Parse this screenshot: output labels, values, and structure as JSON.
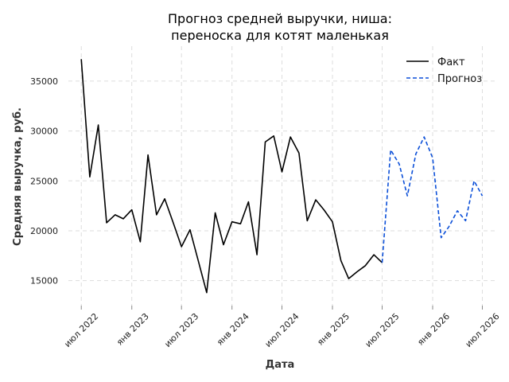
{
  "chart_data": {
    "type": "line",
    "title": [
      "Прогноз средней выручки, ниша:",
      "переноска для котят маленькая"
    ],
    "xlabel": "Дата",
    "ylabel": "Средняя выручка, руб.",
    "x_ticks": [
      {
        "date": "2022-07-01",
        "label": "июл 2022"
      },
      {
        "date": "2023-01-01",
        "label": "янв 2023"
      },
      {
        "date": "2023-07-01",
        "label": "июл 2023"
      },
      {
        "date": "2024-01-01",
        "label": "янв 2024"
      },
      {
        "date": "2024-07-01",
        "label": "июл 2024"
      },
      {
        "date": "2025-01-01",
        "label": "янв 2025"
      },
      {
        "date": "2025-07-01",
        "label": "июл 2025"
      },
      {
        "date": "2026-01-01",
        "label": "янв 2026"
      },
      {
        "date": "2026-07-01",
        "label": "июл 2026"
      }
    ],
    "y_ticks": [
      15000,
      20000,
      25000,
      30000,
      35000
    ],
    "xlim": [
      "2022-05-15",
      "2026-08-15"
    ],
    "ylim": [
      12500,
      38500
    ],
    "grid": true,
    "legend_position": "top-right",
    "series": [
      {
        "name": "Факт",
        "color": "#000000",
        "style": "solid",
        "points": [
          [
            "2022-07-01",
            37200
          ],
          [
            "2022-08-01",
            25400
          ],
          [
            "2022-09-01",
            30600
          ],
          [
            "2022-10-01",
            20800
          ],
          [
            "2022-11-01",
            21600
          ],
          [
            "2022-12-01",
            21200
          ],
          [
            "2023-01-01",
            22100
          ],
          [
            "2023-02-01",
            18900
          ],
          [
            "2023-03-01",
            27600
          ],
          [
            "2023-04-01",
            21600
          ],
          [
            "2023-05-01",
            23200
          ],
          [
            "2023-06-01",
            20800
          ],
          [
            "2023-07-01",
            18400
          ],
          [
            "2023-08-01",
            20100
          ],
          [
            "2023-09-01",
            16900
          ],
          [
            "2023-10-01",
            13800
          ],
          [
            "2023-11-01",
            21800
          ],
          [
            "2023-12-01",
            18600
          ],
          [
            "2024-01-01",
            20900
          ],
          [
            "2024-02-01",
            20700
          ],
          [
            "2024-03-01",
            22900
          ],
          [
            "2024-04-01",
            17600
          ],
          [
            "2024-05-01",
            28900
          ],
          [
            "2024-06-01",
            29500
          ],
          [
            "2024-07-01",
            25900
          ],
          [
            "2024-08-01",
            29400
          ],
          [
            "2024-09-01",
            27800
          ],
          [
            "2024-10-01",
            21000
          ],
          [
            "2024-11-01",
            23100
          ],
          [
            "2024-12-01",
            22100
          ],
          [
            "2025-01-01",
            20900
          ],
          [
            "2025-02-01",
            17000
          ],
          [
            "2025-03-01",
            15200
          ],
          [
            "2025-04-01",
            15900
          ],
          [
            "2025-05-01",
            16500
          ],
          [
            "2025-06-01",
            17600
          ],
          [
            "2025-07-01",
            16800
          ]
        ]
      },
      {
        "name": "Прогноз",
        "color": "#0b4fd8",
        "style": "dashed",
        "points": [
          [
            "2025-07-01",
            16800
          ],
          [
            "2025-08-01",
            28100
          ],
          [
            "2025-09-01",
            26700
          ],
          [
            "2025-10-01",
            23500
          ],
          [
            "2025-11-01",
            27700
          ],
          [
            "2025-12-01",
            29400
          ],
          [
            "2026-01-01",
            27300
          ],
          [
            "2026-02-01",
            19300
          ],
          [
            "2026-03-01",
            20400
          ],
          [
            "2026-04-01",
            22000
          ],
          [
            "2026-05-01",
            21000
          ],
          [
            "2026-06-01",
            25000
          ],
          [
            "2026-07-01",
            23500
          ]
        ]
      }
    ]
  }
}
